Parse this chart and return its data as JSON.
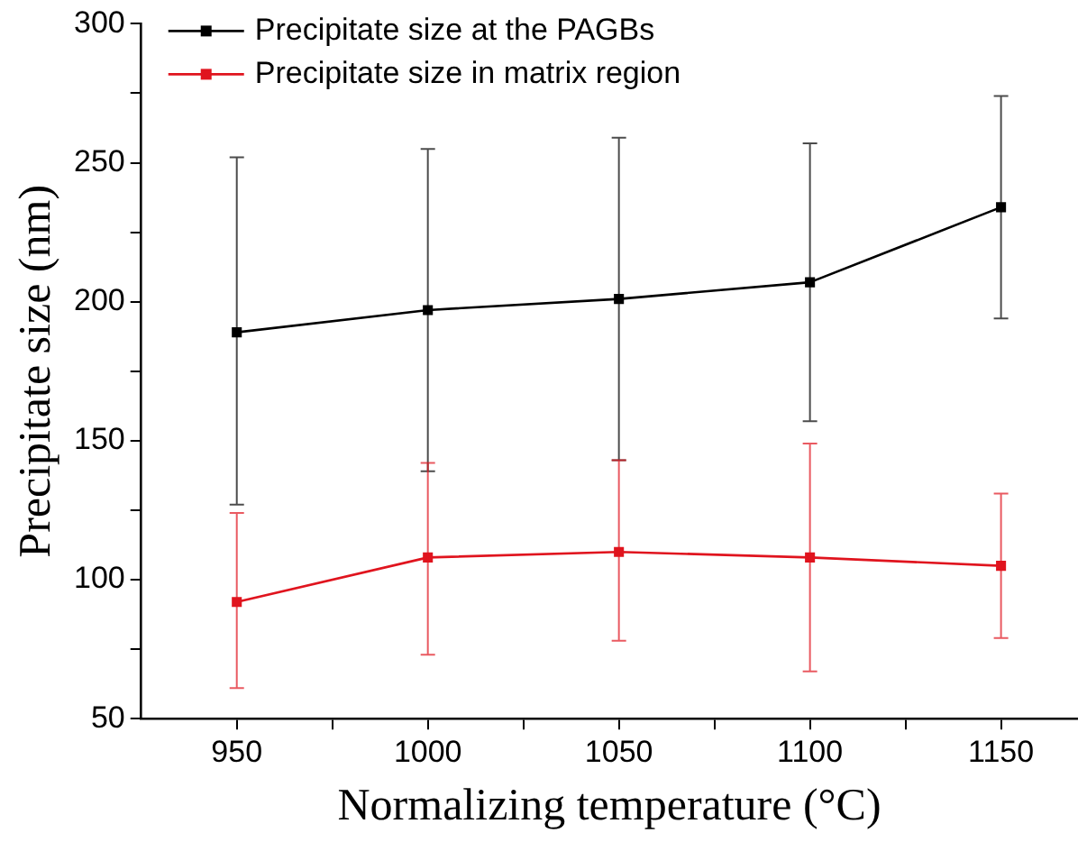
{
  "chart_data": {
    "type": "line",
    "xlabel": "Normalizing temperature (°C)",
    "ylabel": "Precipitate size (nm)",
    "x": [
      950,
      1000,
      1050,
      1100,
      1150
    ],
    "series": [
      {
        "name": "Precipitate size at the PAGBs",
        "color": "#000000",
        "values": [
          189,
          197,
          201,
          207,
          234
        ],
        "errors": [
          [
            127,
            252
          ],
          [
            139,
            255
          ],
          [
            143,
            259
          ],
          [
            157,
            257
          ],
          [
            194,
            274
          ]
        ]
      },
      {
        "name": "Precipitate size in matrix region",
        "color": "#e0141e",
        "values": [
          92,
          108,
          110,
          108,
          105
        ],
        "errors": [
          [
            61,
            124
          ],
          [
            73,
            142
          ],
          [
            78,
            143
          ],
          [
            67,
            149
          ],
          [
            79,
            131
          ]
        ]
      }
    ],
    "xlim": [
      925,
      1170
    ],
    "xticks": [
      950,
      {
        "value": 975,
        "label": null
      },
      1000,
      {
        "value": 1025,
        "label": null
      },
      1050,
      {
        "value": 1075,
        "label": null
      },
      1100,
      {
        "value": 1125,
        "label": null
      },
      1150
    ],
    "ylim": [
      50,
      300
    ],
    "yticks": [
      50,
      {
        "value": 75,
        "label": null
      },
      100,
      {
        "value": 125,
        "label": null
      },
      150,
      {
        "value": 175,
        "label": null
      },
      200,
      {
        "value": 225,
        "label": null
      },
      250,
      {
        "value": 275,
        "label": null
      },
      300
    ],
    "grid": false,
    "legend": "top left",
    "marker": "square",
    "line_style": "solid"
  }
}
